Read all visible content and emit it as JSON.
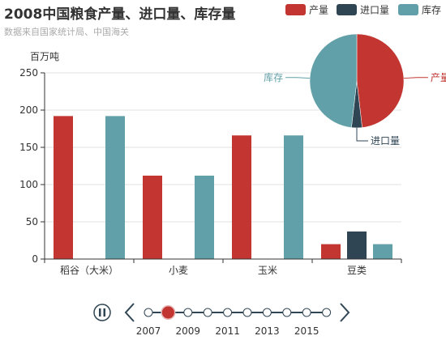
{
  "chart_data": {
    "title": "2008中国粮食产量、进口量、库存量",
    "subtitle": "数据来自国家统计局、中国海关",
    "legend": {
      "placement": "top-right",
      "items": [
        {
          "name": "产量",
          "color": "#c23531"
        },
        {
          "name": "进口量",
          "color": "#2f4554"
        },
        {
          "name": "库存",
          "color": "#61a0a8"
        }
      ]
    },
    "bar": {
      "type": "bar",
      "ylabel": "百万吨",
      "ylim": [
        0,
        250
      ],
      "yticks": [
        0,
        50,
        100,
        150,
        200,
        250
      ],
      "grid": true,
      "categories": [
        "稻谷（大米）",
        "小麦",
        "玉米",
        "豆类"
      ],
      "series": [
        {
          "name": "产量",
          "color": "#c23531",
          "values": [
            192,
            112,
            166,
            20
          ]
        },
        {
          "name": "进口量",
          "color": "#2f4554",
          "values": [
            0.3,
            0,
            0,
            37
          ]
        },
        {
          "name": "库存",
          "color": "#61a0a8",
          "values": [
            192,
            112,
            166,
            20
          ]
        }
      ]
    },
    "pie": {
      "type": "pie",
      "slices": [
        {
          "name": "产量",
          "value": 490,
          "color": "#c23531"
        },
        {
          "name": "进口量",
          "value": 37,
          "color": "#2f4554"
        },
        {
          "name": "库存",
          "value": 490,
          "color": "#61a0a8"
        }
      ]
    },
    "timeline": {
      "years": [
        "2007",
        "2008",
        "2009",
        "2010",
        "2011",
        "2012",
        "2013",
        "2014",
        "2015",
        "2016"
      ],
      "labels": [
        "2007",
        "2009",
        "2011",
        "2013",
        "2015"
      ],
      "current": "2008",
      "playing": false
    }
  }
}
